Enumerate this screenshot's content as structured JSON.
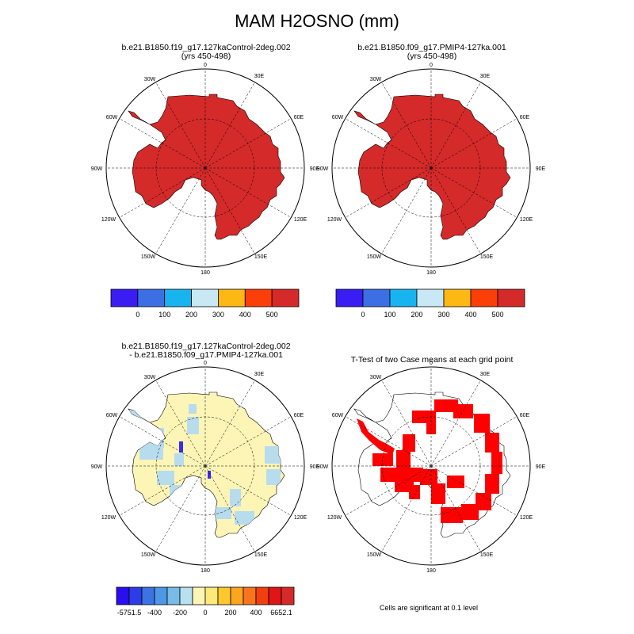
{
  "title": "MAM H2OSNO (mm)",
  "panels": [
    {
      "title_line1": "b.e21.B1850.f19_g17.127kaControl-2deg.002",
      "title_line2": "(yrs 450-498)"
    },
    {
      "title_line1": "b.e21.B1850.f09_g17.PMIP4-127ka.001",
      "title_line2": "(yrs 450-498)"
    },
    {
      "title_line1": "b.e21.B1850.f19_g17.127kaControl-2deg.002",
      "title_line2": "- b.e21.B1850.f09_g17.PMIP4-127ka.001"
    },
    {
      "title_line1": "T-Test of two Case means at each grid point",
      "title_line2": ""
    }
  ],
  "map_labels": [
    "0",
    "30E",
    "60E",
    "90E",
    "120E",
    "150E",
    "180",
    "150W",
    "120W",
    "90W",
    "60W",
    "30W"
  ],
  "colorbar_abs": {
    "colors": [
      "#3a1df2",
      "#3b6fe3",
      "#18b4f0",
      "#c8e8f6",
      "#fdb813",
      "#fc3e09",
      "#d42a2a"
    ],
    "labels": [
      "0",
      "100",
      "200",
      "300",
      "400",
      "500"
    ]
  },
  "colorbar_diff": {
    "colors": [
      "#2a0ef0",
      "#2d3ce6",
      "#3b73e4",
      "#4c98e6",
      "#76bce6",
      "#b7e0f0",
      "#fdf5b6",
      "#fde87a",
      "#fdc82e",
      "#fca51e",
      "#f9741a",
      "#f04010",
      "#e01515",
      "#d42a2a"
    ],
    "labels": [
      "-5751.5",
      "-400",
      "-200",
      "0",
      "200",
      "400",
      "6652.1"
    ]
  },
  "colors": {
    "snow_high": "#d42a2a",
    "diff_bg": "#fdf5b6",
    "diff_neg": "#b7dcee",
    "sig": "#ff0000"
  },
  "footnote": "Cells are significant at 0.1 level"
}
